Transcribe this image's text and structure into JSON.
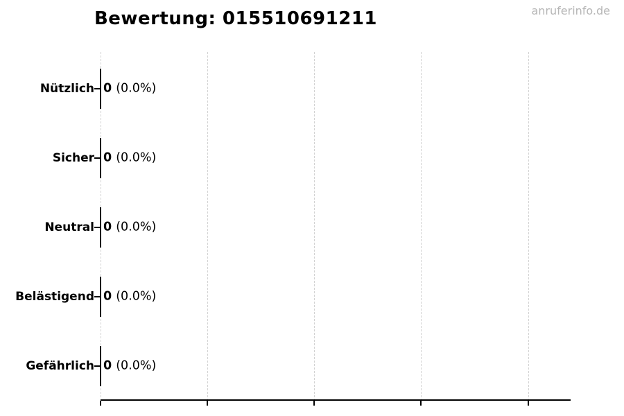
{
  "header": {
    "title": "Bewertung: 015510691211",
    "watermark": "anruferinfo.de"
  },
  "chart_data": {
    "type": "bar",
    "orientation": "horizontal",
    "title": "Bewertung: 015510691211",
    "categories": [
      "Nützlich",
      "Sicher",
      "Neutral",
      "Belästigend",
      "Gefährlich"
    ],
    "values": [
      0,
      0,
      0,
      0,
      0
    ],
    "percentages": [
      "0.0%",
      "0.0%",
      "0.0%",
      "0.0%",
      "0.0%"
    ],
    "annotations": [
      "0 (0.0%)",
      "0 (0.0%)",
      "0 (0.0%)",
      "0 (0.0%)",
      "0 (0.0%)"
    ],
    "rows": [
      {
        "label": "Nützlich",
        "value": "0",
        "percent": "(0.0%)"
      },
      {
        "label": "Sicher",
        "value": "0",
        "percent": "(0.0%)"
      },
      {
        "label": "Neutral",
        "value": "0",
        "percent": "(0.0%)"
      },
      {
        "label": "Belästigend",
        "value": "0",
        "percent": "(0.0%)"
      },
      {
        "label": "Gefährlich",
        "value": "0",
        "percent": "(0.0%)"
      }
    ],
    "xlabel": "",
    "ylabel": "",
    "x_tick_labels": [],
    "gridlines": {
      "orientation": "vertical",
      "style": "dashed",
      "count": 5
    },
    "legend": "none",
    "colors": {
      "axis": "#000000",
      "gridline": "#d2d2d2",
      "bar_outline": "#000000",
      "text": "#000000",
      "watermark": "#b6b6b6",
      "background": "#ffffff"
    }
  }
}
